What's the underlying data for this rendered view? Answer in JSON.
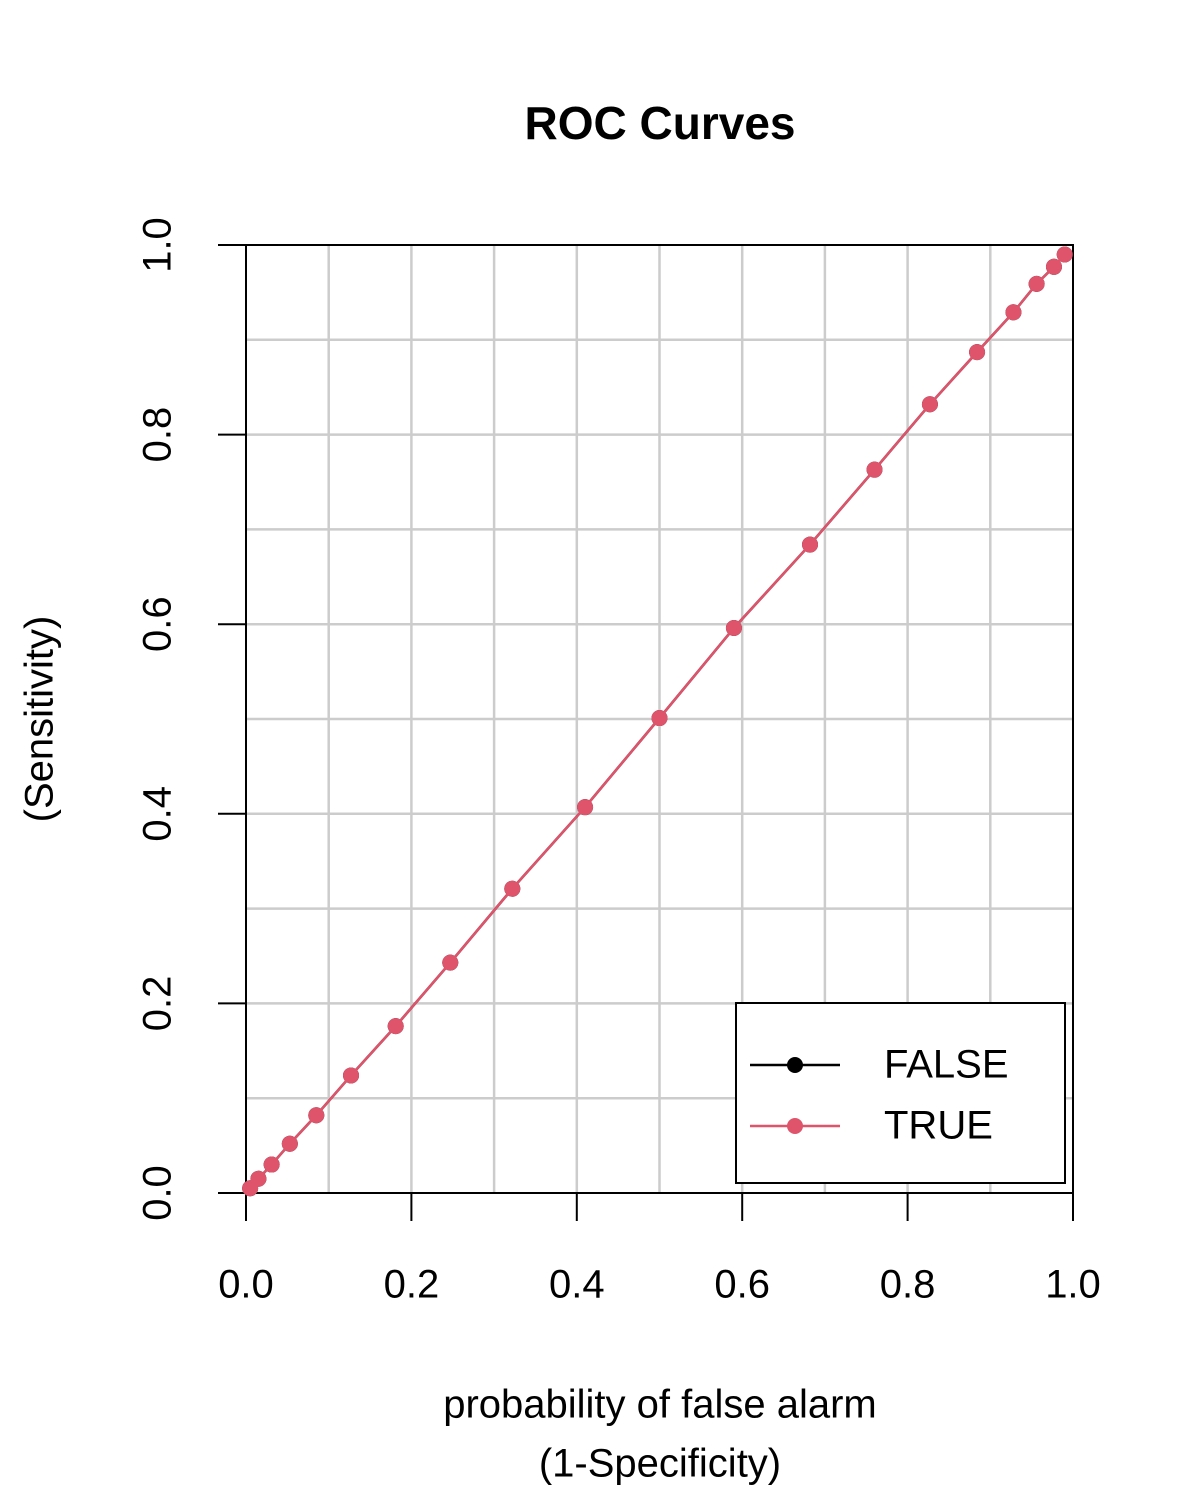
{
  "chart_data": {
    "type": "line",
    "title": "ROC Curves",
    "x_label": [
      "probability of false alarm",
      "(1-Specificity)"
    ],
    "y_label": "(Sensitivity)",
    "xlim": [
      0,
      1
    ],
    "ylim": [
      0,
      1
    ],
    "xticks": [
      {
        "value": 0,
        "label": "0.0"
      },
      0.2,
      0.4,
      0.6,
      0.8,
      {
        "value": 1,
        "label": "1.0"
      }
    ],
    "yticks": [
      {
        "value": 0,
        "label": "0.0"
      },
      0.2,
      0.4,
      0.6,
      0.8,
      {
        "value": 1,
        "label": "1.0"
      }
    ],
    "grid": true,
    "grid_x": [
      0.1,
      0.2,
      0.3,
      0.4,
      0.5,
      0.6,
      0.7,
      0.8,
      0.9
    ],
    "grid_y": [
      0.1,
      0.2,
      0.3,
      0.4,
      0.5,
      0.6,
      0.7,
      0.8,
      0.9
    ],
    "legend_position": "bottomright",
    "series": [
      {
        "name": "FALSE",
        "color": "#000000",
        "x": [
          0.005,
          0.015,
          0.031,
          0.053,
          0.085,
          0.127,
          0.181,
          0.247,
          0.322,
          0.41,
          0.5,
          0.59,
          0.682,
          0.76,
          0.827,
          0.884,
          0.928,
          0.956,
          0.977,
          0.99
        ],
        "values": [
          0.005,
          0.015,
          0.03,
          0.052,
          0.082,
          0.124,
          0.176,
          0.243,
          0.321,
          0.407,
          0.501,
          0.596,
          0.684,
          0.763,
          0.832,
          0.887,
          0.929,
          0.959,
          0.977,
          0.99
        ]
      },
      {
        "name": "TRUE",
        "color": "#DF536B",
        "x": [
          0.005,
          0.015,
          0.031,
          0.053,
          0.085,
          0.127,
          0.181,
          0.247,
          0.322,
          0.41,
          0.5,
          0.59,
          0.682,
          0.76,
          0.827,
          0.884,
          0.928,
          0.956,
          0.977,
          0.99
        ],
        "values": [
          0.005,
          0.015,
          0.03,
          0.052,
          0.082,
          0.124,
          0.176,
          0.243,
          0.321,
          0.407,
          0.501,
          0.596,
          0.684,
          0.763,
          0.832,
          0.887,
          0.929,
          0.959,
          0.977,
          0.99
        ]
      }
    ]
  }
}
